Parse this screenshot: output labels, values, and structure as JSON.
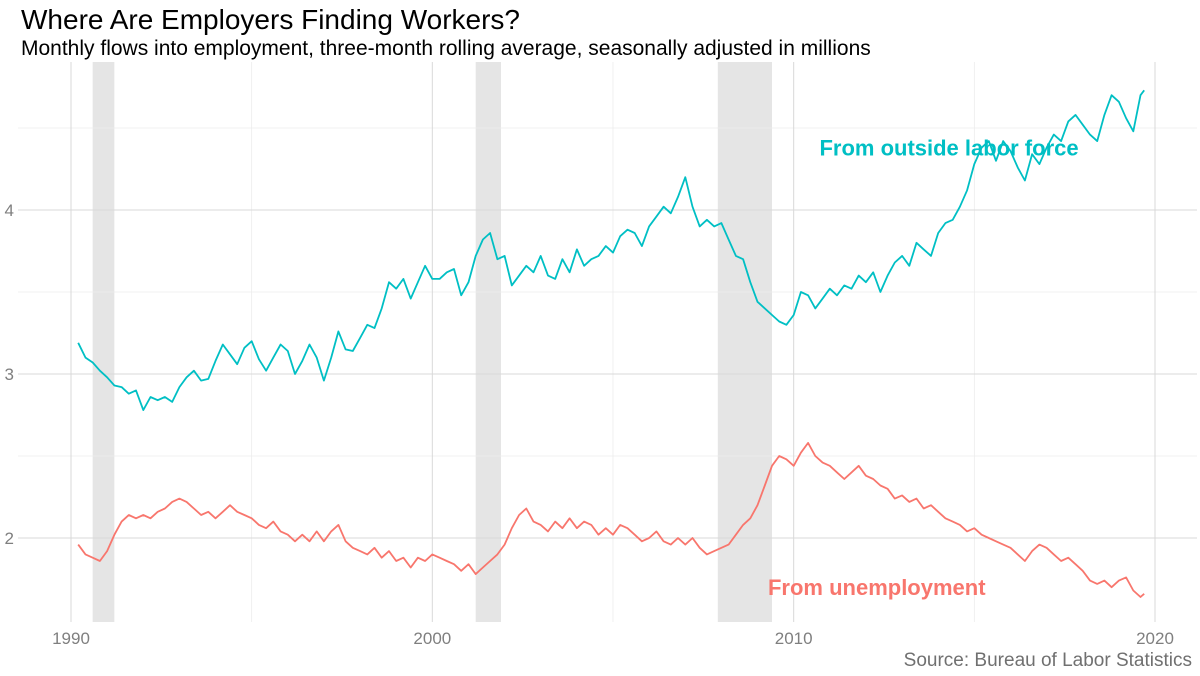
{
  "title": "Where Are Employers Finding Workers?",
  "subtitle": "Monthly flows into employment, three-month rolling average, seasonally adjusted in millions",
  "caption": "Source: Bureau of Labor Statistics",
  "colors": {
    "outside_labor_force": "#00bfc4",
    "unemployment": "#f8766d",
    "recession_band": "#e5e5e5",
    "grid": "#d9d9d9"
  },
  "chart_data": {
    "type": "line",
    "title": "Where Are Employers Finding Workers?",
    "subtitle": "Monthly flows into employment, three-month rolling average, seasonally adjusted in millions",
    "xlabel": "",
    "ylabel": "",
    "xlim": [
      1989.5,
      2020.6
    ],
    "ylim": [
      1.5,
      4.9
    ],
    "xticks": [
      1990,
      2000,
      2010,
      2020
    ],
    "yticks": [
      2,
      3,
      4
    ],
    "grid": true,
    "legend": "direct labels",
    "recessions": [
      [
        1990.6,
        1991.2
      ],
      [
        2001.2,
        2001.9
      ],
      [
        2007.9,
        2009.4
      ]
    ],
    "series": [
      {
        "name": "From outside labor force",
        "label_anchor": [
          2014.3,
          4.38
        ],
        "points": [
          [
            1990.2,
            3.19
          ],
          [
            1990.4,
            3.1
          ],
          [
            1990.6,
            3.07
          ],
          [
            1990.8,
            3.02
          ],
          [
            1991.0,
            2.98
          ],
          [
            1991.2,
            2.93
          ],
          [
            1991.4,
            2.92
          ],
          [
            1991.6,
            2.88
          ],
          [
            1991.8,
            2.9
          ],
          [
            1992.0,
            2.78
          ],
          [
            1992.2,
            2.86
          ],
          [
            1992.4,
            2.84
          ],
          [
            1992.6,
            2.86
          ],
          [
            1992.8,
            2.83
          ],
          [
            1993.0,
            2.92
          ],
          [
            1993.2,
            2.98
          ],
          [
            1993.4,
            3.02
          ],
          [
            1993.6,
            2.96
          ],
          [
            1993.8,
            2.97
          ],
          [
            1994.0,
            3.08
          ],
          [
            1994.2,
            3.18
          ],
          [
            1994.4,
            3.12
          ],
          [
            1994.6,
            3.06
          ],
          [
            1994.8,
            3.16
          ],
          [
            1995.0,
            3.2
          ],
          [
            1995.2,
            3.09
          ],
          [
            1995.4,
            3.02
          ],
          [
            1995.6,
            3.1
          ],
          [
            1995.8,
            3.18
          ],
          [
            1996.0,
            3.14
          ],
          [
            1996.2,
            3.0
          ],
          [
            1996.4,
            3.08
          ],
          [
            1996.6,
            3.18
          ],
          [
            1996.8,
            3.1
          ],
          [
            1997.0,
            2.96
          ],
          [
            1997.2,
            3.1
          ],
          [
            1997.4,
            3.26
          ],
          [
            1997.6,
            3.15
          ],
          [
            1997.8,
            3.14
          ],
          [
            1998.0,
            3.22
          ],
          [
            1998.2,
            3.3
          ],
          [
            1998.4,
            3.28
          ],
          [
            1998.6,
            3.4
          ],
          [
            1998.8,
            3.56
          ],
          [
            1999.0,
            3.52
          ],
          [
            1999.2,
            3.58
          ],
          [
            1999.4,
            3.46
          ],
          [
            1999.6,
            3.56
          ],
          [
            1999.8,
            3.66
          ],
          [
            2000.0,
            3.58
          ],
          [
            2000.2,
            3.58
          ],
          [
            2000.4,
            3.62
          ],
          [
            2000.6,
            3.64
          ],
          [
            2000.8,
            3.48
          ],
          [
            2001.0,
            3.56
          ],
          [
            2001.2,
            3.72
          ],
          [
            2001.4,
            3.82
          ],
          [
            2001.6,
            3.86
          ],
          [
            2001.8,
            3.7
          ],
          [
            2002.0,
            3.72
          ],
          [
            2002.2,
            3.54
          ],
          [
            2002.4,
            3.6
          ],
          [
            2002.6,
            3.66
          ],
          [
            2002.8,
            3.62
          ],
          [
            2003.0,
            3.72
          ],
          [
            2003.2,
            3.6
          ],
          [
            2003.4,
            3.58
          ],
          [
            2003.6,
            3.7
          ],
          [
            2003.8,
            3.62
          ],
          [
            2004.0,
            3.76
          ],
          [
            2004.2,
            3.66
          ],
          [
            2004.4,
            3.7
          ],
          [
            2004.6,
            3.72
          ],
          [
            2004.8,
            3.78
          ],
          [
            2005.0,
            3.74
          ],
          [
            2005.2,
            3.84
          ],
          [
            2005.4,
            3.88
          ],
          [
            2005.6,
            3.86
          ],
          [
            2005.8,
            3.78
          ],
          [
            2006.0,
            3.9
          ],
          [
            2006.2,
            3.96
          ],
          [
            2006.4,
            4.02
          ],
          [
            2006.6,
            3.98
          ],
          [
            2006.8,
            4.08
          ],
          [
            2007.0,
            4.2
          ],
          [
            2007.2,
            4.02
          ],
          [
            2007.4,
            3.9
          ],
          [
            2007.6,
            3.94
          ],
          [
            2007.8,
            3.9
          ],
          [
            2008.0,
            3.92
          ],
          [
            2008.2,
            3.82
          ],
          [
            2008.4,
            3.72
          ],
          [
            2008.6,
            3.7
          ],
          [
            2008.8,
            3.56
          ],
          [
            2009.0,
            3.44
          ],
          [
            2009.2,
            3.4
          ],
          [
            2009.4,
            3.36
          ],
          [
            2009.6,
            3.32
          ],
          [
            2009.8,
            3.3
          ],
          [
            2010.0,
            3.36
          ],
          [
            2010.2,
            3.5
          ],
          [
            2010.4,
            3.48
          ],
          [
            2010.6,
            3.4
          ],
          [
            2010.8,
            3.46
          ],
          [
            2011.0,
            3.52
          ],
          [
            2011.2,
            3.48
          ],
          [
            2011.4,
            3.54
          ],
          [
            2011.6,
            3.52
          ],
          [
            2011.8,
            3.6
          ],
          [
            2012.0,
            3.56
          ],
          [
            2012.2,
            3.62
          ],
          [
            2012.4,
            3.5
          ],
          [
            2012.6,
            3.6
          ],
          [
            2012.8,
            3.68
          ],
          [
            2013.0,
            3.72
          ],
          [
            2013.2,
            3.66
          ],
          [
            2013.4,
            3.8
          ],
          [
            2013.6,
            3.76
          ],
          [
            2013.8,
            3.72
          ],
          [
            2014.0,
            3.86
          ],
          [
            2014.2,
            3.92
          ],
          [
            2014.4,
            3.94
          ],
          [
            2014.6,
            4.02
          ],
          [
            2014.8,
            4.12
          ],
          [
            2015.0,
            4.28
          ],
          [
            2015.2,
            4.38
          ],
          [
            2015.4,
            4.42
          ],
          [
            2015.6,
            4.3
          ],
          [
            2015.8,
            4.42
          ],
          [
            2016.0,
            4.36
          ],
          [
            2016.2,
            4.26
          ],
          [
            2016.4,
            4.18
          ],
          [
            2016.6,
            4.34
          ],
          [
            2016.8,
            4.28
          ],
          [
            2017.0,
            4.38
          ],
          [
            2017.2,
            4.46
          ],
          [
            2017.4,
            4.42
          ],
          [
            2017.6,
            4.54
          ],
          [
            2017.8,
            4.58
          ],
          [
            2018.0,
            4.52
          ],
          [
            2018.2,
            4.46
          ],
          [
            2018.4,
            4.42
          ],
          [
            2018.6,
            4.58
          ],
          [
            2018.8,
            4.7
          ],
          [
            2019.0,
            4.66
          ],
          [
            2019.2,
            4.56
          ],
          [
            2019.4,
            4.48
          ],
          [
            2019.6,
            4.7
          ],
          [
            2019.7,
            4.73
          ]
        ]
      },
      {
        "name": "From unemployment",
        "label_anchor": [
          2012.3,
          1.7
        ],
        "points": [
          [
            1990.2,
            1.96
          ],
          [
            1990.4,
            1.9
          ],
          [
            1990.6,
            1.88
          ],
          [
            1990.8,
            1.86
          ],
          [
            1991.0,
            1.92
          ],
          [
            1991.2,
            2.02
          ],
          [
            1991.4,
            2.1
          ],
          [
            1991.6,
            2.14
          ],
          [
            1991.8,
            2.12
          ],
          [
            1992.0,
            2.14
          ],
          [
            1992.2,
            2.12
          ],
          [
            1992.4,
            2.16
          ],
          [
            1992.6,
            2.18
          ],
          [
            1992.8,
            2.22
          ],
          [
            1993.0,
            2.24
          ],
          [
            1993.2,
            2.22
          ],
          [
            1993.4,
            2.18
          ],
          [
            1993.6,
            2.14
          ],
          [
            1993.8,
            2.16
          ],
          [
            1994.0,
            2.12
          ],
          [
            1994.2,
            2.16
          ],
          [
            1994.4,
            2.2
          ],
          [
            1994.6,
            2.16
          ],
          [
            1994.8,
            2.14
          ],
          [
            1995.0,
            2.12
          ],
          [
            1995.2,
            2.08
          ],
          [
            1995.4,
            2.06
          ],
          [
            1995.6,
            2.1
          ],
          [
            1995.8,
            2.04
          ],
          [
            1996.0,
            2.02
          ],
          [
            1996.2,
            1.98
          ],
          [
            1996.4,
            2.02
          ],
          [
            1996.6,
            1.98
          ],
          [
            1996.8,
            2.04
          ],
          [
            1997.0,
            1.98
          ],
          [
            1997.2,
            2.04
          ],
          [
            1997.4,
            2.08
          ],
          [
            1997.6,
            1.98
          ],
          [
            1997.8,
            1.94
          ],
          [
            1998.0,
            1.92
          ],
          [
            1998.2,
            1.9
          ],
          [
            1998.4,
            1.94
          ],
          [
            1998.6,
            1.88
          ],
          [
            1998.8,
            1.92
          ],
          [
            1999.0,
            1.86
          ],
          [
            1999.2,
            1.88
          ],
          [
            1999.4,
            1.82
          ],
          [
            1999.6,
            1.88
          ],
          [
            1999.8,
            1.86
          ],
          [
            2000.0,
            1.9
          ],
          [
            2000.2,
            1.88
          ],
          [
            2000.4,
            1.86
          ],
          [
            2000.6,
            1.84
          ],
          [
            2000.8,
            1.8
          ],
          [
            2001.0,
            1.84
          ],
          [
            2001.2,
            1.78
          ],
          [
            2001.4,
            1.82
          ],
          [
            2001.6,
            1.86
          ],
          [
            2001.8,
            1.9
          ],
          [
            2002.0,
            1.96
          ],
          [
            2002.2,
            2.06
          ],
          [
            2002.4,
            2.14
          ],
          [
            2002.6,
            2.18
          ],
          [
            2002.8,
            2.1
          ],
          [
            2003.0,
            2.08
          ],
          [
            2003.2,
            2.04
          ],
          [
            2003.4,
            2.1
          ],
          [
            2003.6,
            2.06
          ],
          [
            2003.8,
            2.12
          ],
          [
            2004.0,
            2.06
          ],
          [
            2004.2,
            2.1
          ],
          [
            2004.4,
            2.08
          ],
          [
            2004.6,
            2.02
          ],
          [
            2004.8,
            2.06
          ],
          [
            2005.0,
            2.02
          ],
          [
            2005.2,
            2.08
          ],
          [
            2005.4,
            2.06
          ],
          [
            2005.6,
            2.02
          ],
          [
            2005.8,
            1.98
          ],
          [
            2006.0,
            2.0
          ],
          [
            2006.2,
            2.04
          ],
          [
            2006.4,
            1.98
          ],
          [
            2006.6,
            1.96
          ],
          [
            2006.8,
            2.0
          ],
          [
            2007.0,
            1.96
          ],
          [
            2007.2,
            2.0
          ],
          [
            2007.4,
            1.94
          ],
          [
            2007.6,
            1.9
          ],
          [
            2007.8,
            1.92
          ],
          [
            2008.0,
            1.94
          ],
          [
            2008.2,
            1.96
          ],
          [
            2008.4,
            2.02
          ],
          [
            2008.6,
            2.08
          ],
          [
            2008.8,
            2.12
          ],
          [
            2009.0,
            2.2
          ],
          [
            2009.2,
            2.32
          ],
          [
            2009.4,
            2.44
          ],
          [
            2009.6,
            2.5
          ],
          [
            2009.8,
            2.48
          ],
          [
            2010.0,
            2.44
          ],
          [
            2010.2,
            2.52
          ],
          [
            2010.4,
            2.58
          ],
          [
            2010.6,
            2.5
          ],
          [
            2010.8,
            2.46
          ],
          [
            2011.0,
            2.44
          ],
          [
            2011.2,
            2.4
          ],
          [
            2011.4,
            2.36
          ],
          [
            2011.6,
            2.4
          ],
          [
            2011.8,
            2.44
          ],
          [
            2012.0,
            2.38
          ],
          [
            2012.2,
            2.36
          ],
          [
            2012.4,
            2.32
          ],
          [
            2012.6,
            2.3
          ],
          [
            2012.8,
            2.24
          ],
          [
            2013.0,
            2.26
          ],
          [
            2013.2,
            2.22
          ],
          [
            2013.4,
            2.24
          ],
          [
            2013.6,
            2.18
          ],
          [
            2013.8,
            2.2
          ],
          [
            2014.0,
            2.16
          ],
          [
            2014.2,
            2.12
          ],
          [
            2014.4,
            2.1
          ],
          [
            2014.6,
            2.08
          ],
          [
            2014.8,
            2.04
          ],
          [
            2015.0,
            2.06
          ],
          [
            2015.2,
            2.02
          ],
          [
            2015.4,
            2.0
          ],
          [
            2015.6,
            1.98
          ],
          [
            2015.8,
            1.96
          ],
          [
            2016.0,
            1.94
          ],
          [
            2016.2,
            1.9
          ],
          [
            2016.4,
            1.86
          ],
          [
            2016.6,
            1.92
          ],
          [
            2016.8,
            1.96
          ],
          [
            2017.0,
            1.94
          ],
          [
            2017.2,
            1.9
          ],
          [
            2017.4,
            1.86
          ],
          [
            2017.6,
            1.88
          ],
          [
            2017.8,
            1.84
          ],
          [
            2018.0,
            1.8
          ],
          [
            2018.2,
            1.74
          ],
          [
            2018.4,
            1.72
          ],
          [
            2018.6,
            1.74
          ],
          [
            2018.8,
            1.7
          ],
          [
            2019.0,
            1.74
          ],
          [
            2019.2,
            1.76
          ],
          [
            2019.4,
            1.68
          ],
          [
            2019.6,
            1.64
          ],
          [
            2019.7,
            1.66
          ]
        ]
      }
    ]
  }
}
